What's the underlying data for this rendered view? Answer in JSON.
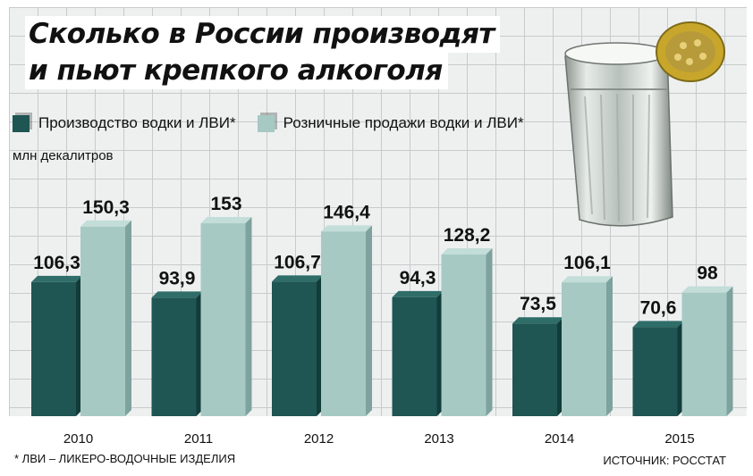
{
  "title_line1": "Сколько в России производят",
  "title_line2": "и пьют крепкого алкоголя",
  "legend": {
    "production": "Производство водки и ЛВИ*",
    "retail": "Розничные продажи водки и ЛВИ*"
  },
  "unit": "млн декалитров",
  "footnote": "* ЛВИ – ЛИКЕРО-ВОДОЧНЫЕ ИЗДЕЛИЯ",
  "source": "ИСТОЧНИК: РОССТАТ",
  "colors": {
    "production": "#1f5552",
    "retail": "#a6c9c4",
    "grid_bg": "#eef0f0"
  },
  "chart_data": {
    "type": "bar",
    "categories": [
      "2010",
      "2011",
      "2012",
      "2013",
      "2014",
      "2015"
    ],
    "series": [
      {
        "name": "Производство водки и ЛВИ*",
        "values": [
          106.3,
          93.9,
          106.7,
          94.3,
          73.5,
          70.6
        ],
        "labels": [
          "106,3",
          "93,9",
          "106,7",
          "94,3",
          "73,5",
          "70,6"
        ]
      },
      {
        "name": "Розничные продажи водки и ЛВИ*",
        "values": [
          150.3,
          153,
          146.4,
          128.2,
          106.1,
          98
        ],
        "labels": [
          "150,3",
          "153",
          "146,4",
          "128,2",
          "106,1",
          "98"
        ]
      }
    ],
    "title": "Сколько в России производят и пьют крепкого алкоголя",
    "ylabel": "млн декалитров",
    "ylim": [
      0,
      153
    ],
    "grid": true,
    "legend": "top-left"
  }
}
